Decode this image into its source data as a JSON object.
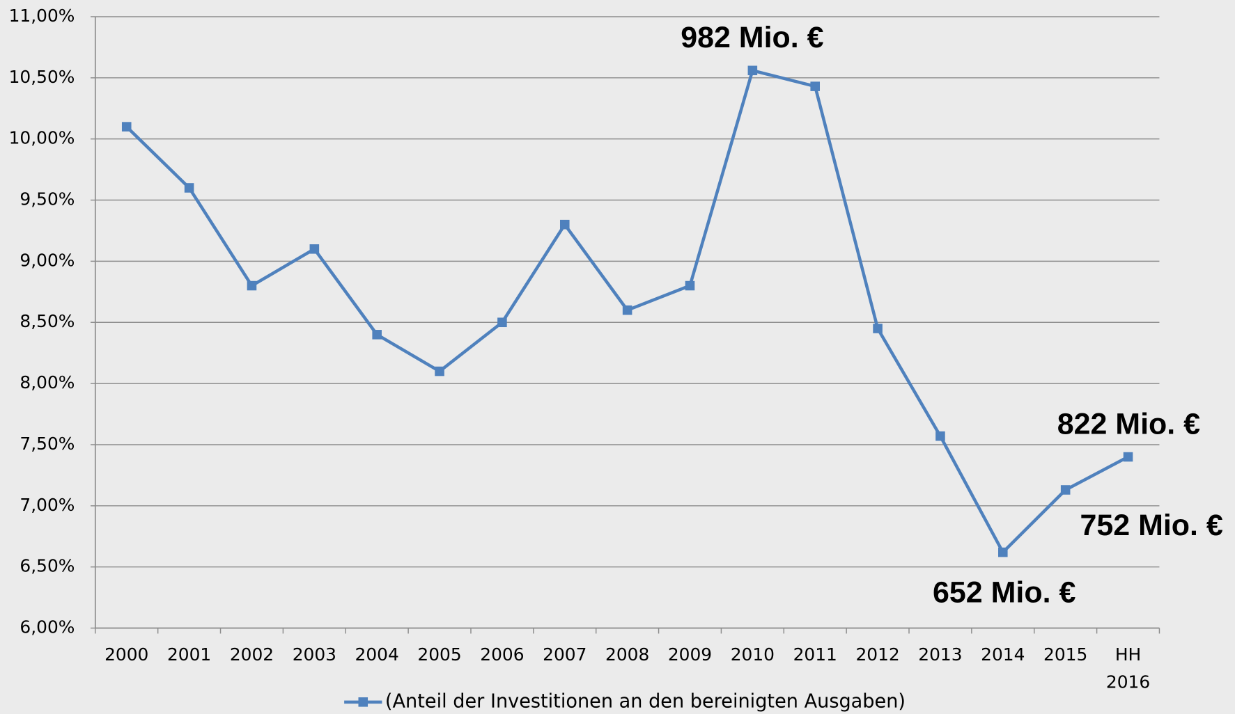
{
  "chart_data": {
    "type": "line",
    "categories": [
      "2000",
      "2001",
      "2002",
      "2003",
      "2004",
      "2005",
      "2006",
      "2007",
      "2008",
      "2009",
      "2010",
      "2011",
      "2012",
      "2013",
      "2014",
      "2015",
      "HH\n2016"
    ],
    "series": [
      {
        "name": "(Anteil der Investitionen an den bereinigten Ausgaben)",
        "color": "#4f81bd",
        "values": [
          10.1,
          9.6,
          8.8,
          9.1,
          8.4,
          8.1,
          8.5,
          9.3,
          8.6,
          8.8,
          10.56,
          10.43,
          8.45,
          7.57,
          6.62,
          7.13,
          7.4
        ]
      }
    ],
    "ylim": [
      6,
      11
    ],
    "yticks": [
      {
        "value": 6,
        "label": "6,00%"
      },
      {
        "value": 6.5,
        "label": "6,50%"
      },
      {
        "value": 7,
        "label": "7,00%"
      },
      {
        "value": 7.5,
        "label": "7,50%"
      },
      {
        "value": 8,
        "label": "8,00%"
      },
      {
        "value": 8.5,
        "label": "8,50%"
      },
      {
        "value": 9,
        "label": "9,00%"
      },
      {
        "value": 9.5,
        "label": "9,50%"
      },
      {
        "value": 10,
        "label": "10,00%"
      },
      {
        "value": 10.5,
        "label": "10,50%"
      },
      {
        "value": 11,
        "label": "11,00%"
      }
    ],
    "grid": true,
    "legend": "bottom",
    "annotations": [
      "982 Mio. €",
      "822 Mio. €",
      "752 Mio. €",
      "652 Mio. €"
    ]
  }
}
